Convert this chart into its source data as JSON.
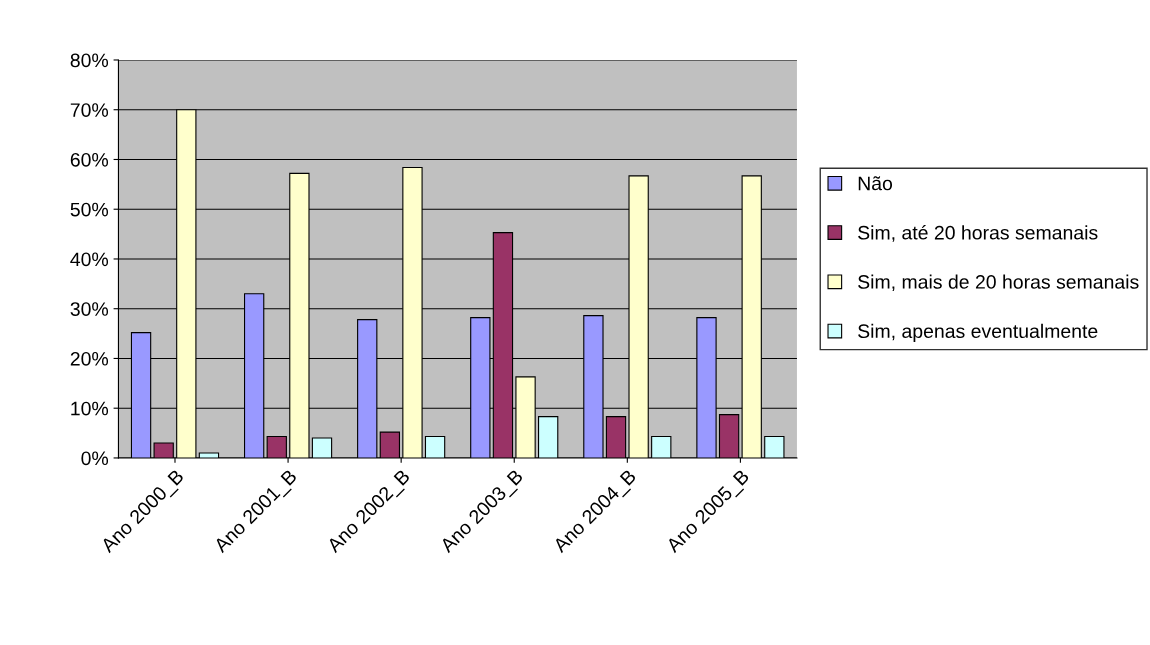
{
  "chart_data": {
    "type": "bar",
    "categories": [
      "Ano 2000_B",
      "Ano 2001_B",
      "Ano 2002_B",
      "Ano 2003_B",
      "Ano 2004_B",
      "Ano 2005_B"
    ],
    "series": [
      {
        "name": "Não",
        "color": "#9999ff",
        "values": [
          25.2,
          33,
          27.8,
          28.2,
          28.6,
          28.2
        ]
      },
      {
        "name": "Sim, até 20 horas semanais",
        "color": "#993366",
        "values": [
          3,
          4.3,
          5.2,
          45.3,
          8.3,
          8.7
        ]
      },
      {
        "name": "Sim, mais de 20 horas semanais",
        "color": "#ffffcc",
        "values": [
          70,
          57.2,
          58.4,
          16.3,
          56.7,
          56.7
        ]
      },
      {
        "name": "Sim, apenas eventualmente",
        "color": "#ccffff",
        "values": [
          1,
          4,
          4.3,
          8.3,
          4.3,
          4.3
        ]
      }
    ],
    "ylim": [
      0,
      80
    ],
    "yticks": [
      {
        "value": 0,
        "label": "0%"
      },
      {
        "value": 10,
        "label": "10%"
      },
      {
        "value": 20,
        "label": "20%"
      },
      {
        "value": 30,
        "label": "30%"
      },
      {
        "value": 40,
        "label": "40%"
      },
      {
        "value": 50,
        "label": "50%"
      },
      {
        "value": 60,
        "label": "60%"
      },
      {
        "value": 70,
        "label": "70%"
      },
      {
        "value": 80,
        "label": "80%"
      }
    ],
    "grid": "y",
    "legend": "right"
  }
}
